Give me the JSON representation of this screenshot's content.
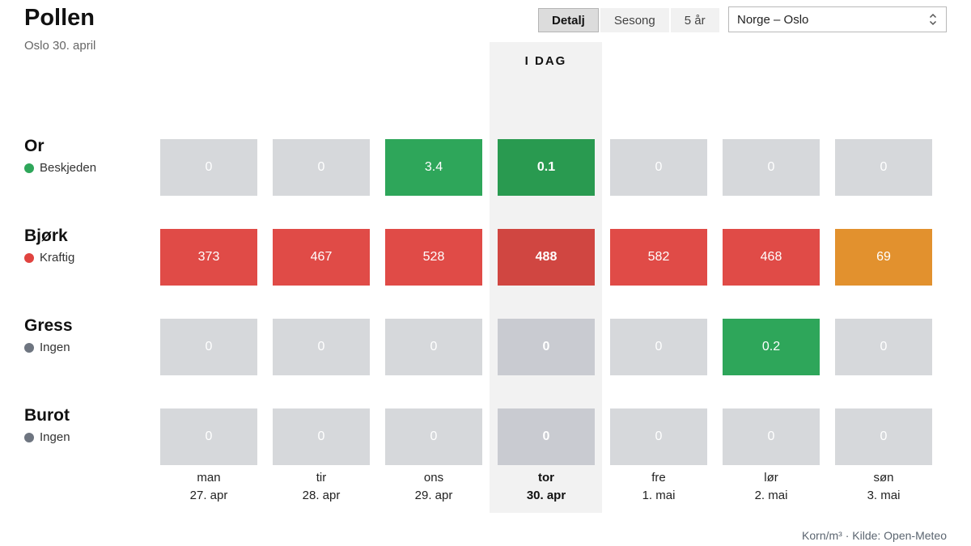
{
  "header": {
    "title": "Pollen",
    "subtitle": "Oslo 30. april"
  },
  "controls": {
    "tabs": [
      {
        "label": "Detalj",
        "active": true
      },
      {
        "label": "Sesong",
        "active": false
      },
      {
        "label": "5 år",
        "active": false
      }
    ],
    "location_select": {
      "value": "Norge – Oslo"
    }
  },
  "chart_data": {
    "type": "heatmap",
    "title": "Pollen",
    "subtitle": "Oslo 30. april",
    "today_label": "I DAG",
    "today_index": 3,
    "columns": [
      {
        "day": "man",
        "date": "27. apr"
      },
      {
        "day": "tir",
        "date": "28. apr"
      },
      {
        "day": "ons",
        "date": "29. apr"
      },
      {
        "day": "tor",
        "date": "30. apr"
      },
      {
        "day": "fre",
        "date": "1. mai"
      },
      {
        "day": "lør",
        "date": "2. mai"
      },
      {
        "day": "søn",
        "date": "3. mai"
      }
    ],
    "rows": [
      {
        "name": "Or",
        "status": "Beskjeden",
        "status_color": "#2ea65a",
        "values": [
          "0",
          "0",
          "3.4",
          "0.1",
          "0",
          "0",
          "0"
        ],
        "levels": [
          "none",
          "none",
          "low",
          "low",
          "none",
          "none",
          "none"
        ]
      },
      {
        "name": "Bjørk",
        "status": "Kraftig",
        "status_color": "#e0433f",
        "values": [
          "373",
          "467",
          "528",
          "488",
          "582",
          "468",
          "69"
        ],
        "levels": [
          "severe",
          "severe",
          "severe",
          "severe",
          "severe",
          "severe",
          "moderate"
        ]
      },
      {
        "name": "Gress",
        "status": "Ingen",
        "status_color": "#6e7580",
        "values": [
          "0",
          "0",
          "0",
          "0",
          "0",
          "0.2",
          "0"
        ],
        "levels": [
          "none",
          "none",
          "none",
          "none",
          "none",
          "low",
          "none"
        ]
      },
      {
        "name": "Burot",
        "status": "Ingen",
        "status_color": "#6e7580",
        "values": [
          "0",
          "0",
          "0",
          "0",
          "0",
          "0",
          "0"
        ],
        "levels": [
          "none",
          "none",
          "none",
          "none",
          "none",
          "none",
          "none"
        ]
      }
    ],
    "palette": {
      "none": {
        "bg": "#d6d8db",
        "today_bg": "#c9cbd1"
      },
      "low": {
        "bg": "#2ea65a",
        "today_bg": "#299a50"
      },
      "moderate": {
        "bg": "#e2912e",
        "today_bg": "#d1861f"
      },
      "severe": {
        "bg": "#e04b47",
        "today_bg": "#d04641"
      }
    },
    "band_color": "#f2f2f2"
  },
  "footer": {
    "note": "Korn/m³ · Kilde: Open-Meteo"
  }
}
